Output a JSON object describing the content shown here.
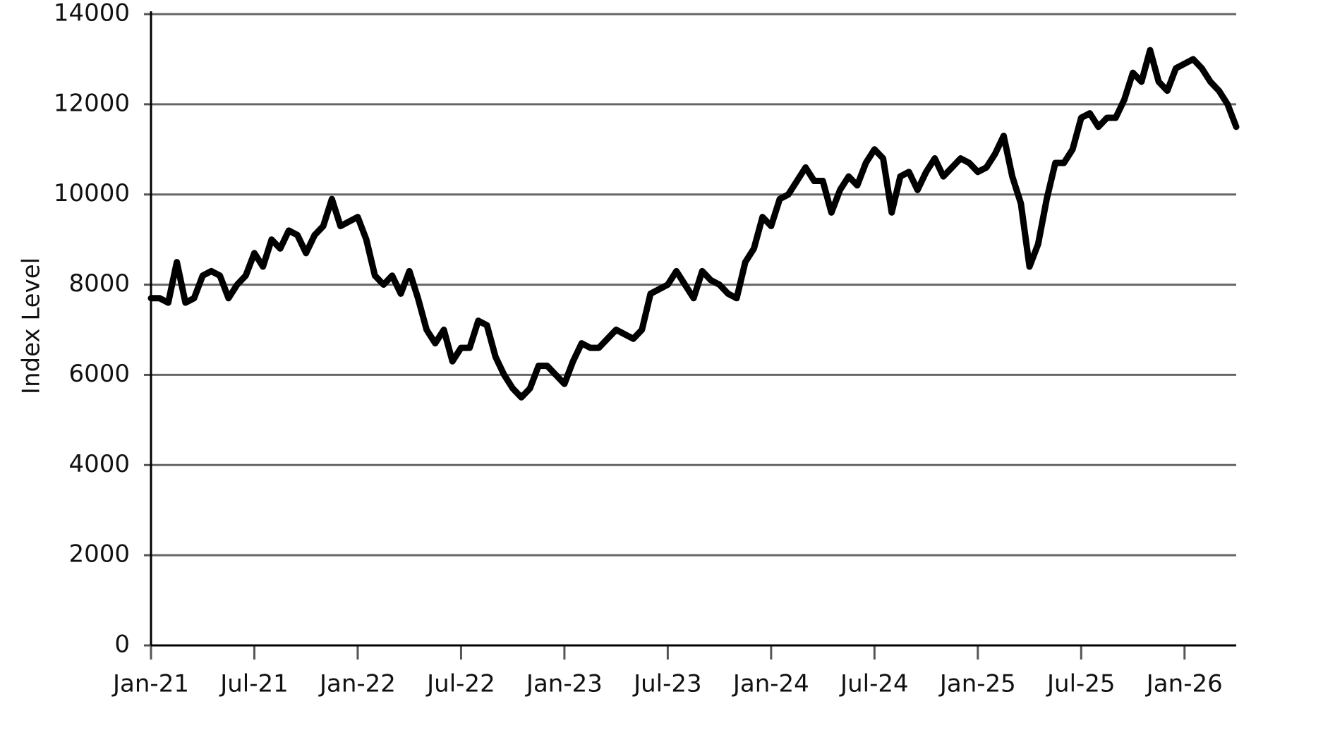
{
  "chart_data": {
    "type": "line",
    "y_label": "Index Level",
    "categories": [
      "Jan-21",
      null,
      null,
      null,
      null,
      null,
      null,
      null,
      null,
      null,
      null,
      null,
      "Jul-21",
      null,
      null,
      null,
      null,
      null,
      null,
      null,
      null,
      null,
      null,
      null,
      "Jan-22",
      null,
      null,
      null,
      null,
      null,
      null,
      null,
      null,
      null,
      null,
      null,
      "Jul-22",
      null,
      null,
      null,
      null,
      null,
      null,
      null,
      null,
      null,
      null,
      null,
      "Jan-23",
      null,
      null,
      null,
      null,
      null,
      null,
      null,
      null,
      null,
      null,
      null,
      "Jul-23",
      null,
      null,
      null,
      null,
      null,
      null,
      null,
      null,
      null,
      null,
      null,
      "Jan-24",
      null,
      null,
      null,
      null,
      null,
      null,
      null,
      null,
      null,
      null,
      null,
      "Jul-24",
      null,
      null,
      null,
      null,
      null,
      null,
      null,
      null,
      null,
      null,
      null,
      "Jan-25",
      null,
      null,
      null,
      null,
      null,
      null,
      null,
      null,
      null,
      null,
      null,
      "Jul-25",
      null,
      null,
      null,
      null,
      null,
      null,
      null,
      null,
      null,
      null,
      null,
      "Jan-26",
      null,
      null,
      null,
      null,
      null,
      null
    ],
    "series": [
      {
        "name": "Index Level",
        "color": "#000000",
        "values": [
          7700,
          7700,
          7600,
          8500,
          7600,
          7700,
          8200,
          8300,
          8200,
          7700,
          8000,
          8200,
          8700,
          8400,
          9000,
          8800,
          9200,
          9100,
          8700,
          9100,
          9300,
          9900,
          9300,
          9400,
          9500,
          9000,
          8200,
          8000,
          8200,
          7800,
          8300,
          7700,
          7000,
          6700,
          7000,
          6300,
          6600,
          6600,
          7200,
          7100,
          6400,
          6000,
          5700,
          5500,
          5700,
          6200,
          6200,
          6000,
          5800,
          6300,
          6700,
          6600,
          6600,
          6800,
          7000,
          6900,
          6800,
          7000,
          7800,
          7900,
          8000,
          8300,
          8000,
          7700,
          8300,
          8100,
          8000,
          7800,
          7700,
          8500,
          8800,
          9500,
          9300,
          9900,
          10000,
          10300,
          10600,
          10300,
          10300,
          9600,
          10100,
          10400,
          10200,
          10700,
          11000,
          10800,
          9600,
          10400,
          10500,
          10100,
          10500,
          10800,
          10400,
          10600,
          10800,
          10700,
          10500,
          10600,
          10900,
          11300,
          10400,
          9800,
          8400,
          8900,
          9900,
          10700,
          10700,
          11000,
          11700,
          11800,
          11500,
          11700,
          11700,
          12100,
          12700,
          12500,
          13200,
          12500,
          12300,
          12800,
          12900,
          13000,
          12800,
          12500,
          12300,
          12000,
          11500
        ]
      }
    ],
    "ylim": [
      0,
      14000
    ],
    "yticks": [
      0,
      2000,
      4000,
      6000,
      8000,
      10000,
      12000,
      14000
    ],
    "grid": true
  }
}
